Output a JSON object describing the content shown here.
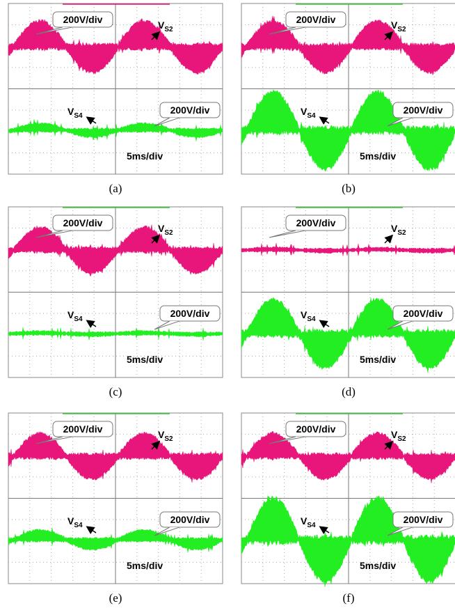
{
  "panels": [
    {
      "label": "(a)",
      "top_scale": "200V/div",
      "top_signal": {
        "base": "V",
        "sub": "S2"
      },
      "bottom_signal": {
        "base": "V",
        "sub": "S4"
      },
      "bottom_scale": "200V/div",
      "time_scale": "5ms/div"
    },
    {
      "label": "(b)",
      "top_scale": "200V/div",
      "top_signal": {
        "base": "V",
        "sub": "S2"
      },
      "bottom_signal": {
        "base": "V",
        "sub": "S4"
      },
      "bottom_scale": "200V/div",
      "time_scale": "5ms/div"
    },
    {
      "label": "(c)",
      "top_scale": "200V/div",
      "top_signal": {
        "base": "V",
        "sub": "S2"
      },
      "bottom_signal": {
        "base": "V",
        "sub": "S4"
      },
      "bottom_scale": "200V/div",
      "time_scale": "5ms/div"
    },
    {
      "label": "(d)",
      "top_scale": "200V/div",
      "top_signal": {
        "base": "V",
        "sub": "S2"
      },
      "bottom_signal": {
        "base": "V",
        "sub": "S4"
      },
      "bottom_scale": "200V/div",
      "time_scale": "5ms/div"
    },
    {
      "label": "(e)",
      "top_scale": "200V/div",
      "top_signal": {
        "base": "V",
        "sub": "S2"
      },
      "bottom_signal": {
        "base": "V",
        "sub": "S4"
      },
      "bottom_scale": "200V/div",
      "time_scale": "5ms/div"
    },
    {
      "label": "(f)",
      "top_scale": "200V/div",
      "top_signal": {
        "base": "V",
        "sub": "S2"
      },
      "bottom_signal": {
        "base": "V",
        "sub": "S4"
      },
      "bottom_scale": "200V/div",
      "time_scale": "5ms/div"
    }
  ]
}
